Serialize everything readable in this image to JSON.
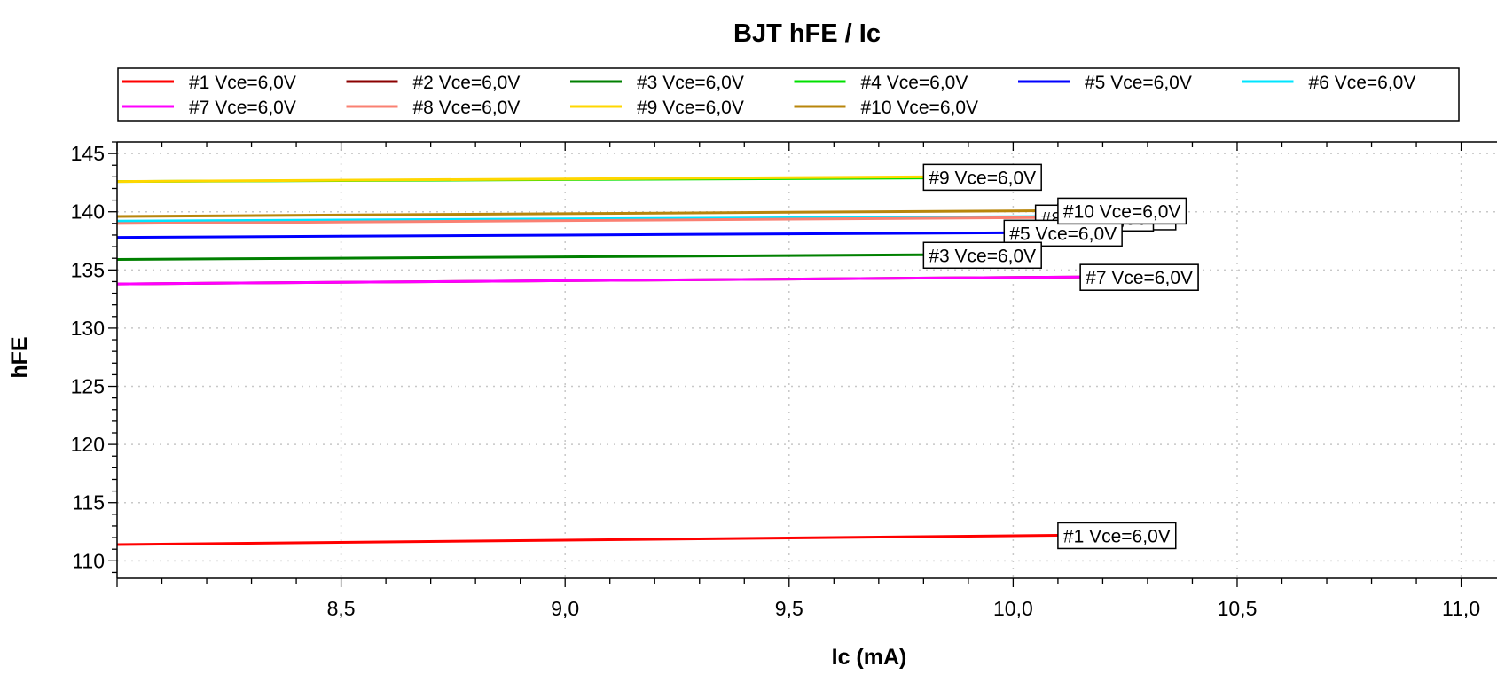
{
  "chart_data": {
    "type": "line",
    "title": "BJT hFE / Ic",
    "xlabel": "Ic (mA)",
    "ylabel": "hFE",
    "xlim": [
      8.0,
      11.08
    ],
    "ylim": [
      108.5,
      146
    ],
    "x_ticks": [
      8.5,
      9.0,
      9.5,
      10.0,
      10.5,
      11.0
    ],
    "x_tick_labels": [
      "8,5",
      "9,0",
      "9,5",
      "10,0",
      "10,5",
      "11,0"
    ],
    "y_ticks": [
      110,
      115,
      120,
      125,
      130,
      135,
      140,
      145
    ],
    "y_tick_labels": [
      "110",
      "115",
      "120",
      "125",
      "130",
      "135",
      "140",
      "145"
    ],
    "grid": true,
    "legend_position": "top",
    "series": [
      {
        "name": "#1 Vce=6,0V",
        "color": "#ff0000",
        "x": [
          8.0,
          10.1
        ],
        "y": [
          111.4,
          112.2
        ],
        "label_at_x": 10.1
      },
      {
        "name": "#2 Vce=6,0V",
        "color": "#8b0000",
        "x": [
          8.0,
          10.15
        ],
        "y": [
          133.8,
          134.4
        ],
        "label_at_x": 10.15
      },
      {
        "name": "#3 Vce=6,0V",
        "color": "#008000",
        "x": [
          8.0,
          9.8
        ],
        "y": [
          135.9,
          136.3
        ],
        "label_at_x": 9.8
      },
      {
        "name": "#4 Vce=6,0V",
        "color": "#00e000",
        "x": [
          8.0,
          9.8
        ],
        "y": [
          142.6,
          142.9
        ],
        "label_at_x": 9.8
      },
      {
        "name": "#5 Vce=6,0V",
        "color": "#0000ff",
        "x": [
          8.0,
          9.98
        ],
        "y": [
          137.8,
          138.2
        ],
        "label_at_x": 9.98
      },
      {
        "name": "#6 Vce=6,0V",
        "color": "#00e5ff",
        "x": [
          8.0,
          10.1
        ],
        "y": [
          139.2,
          139.6
        ],
        "label_at_x": 10.1
      },
      {
        "name": "#7 Vce=6,0V",
        "color": "#ff00ff",
        "x": [
          8.0,
          10.15
        ],
        "y": [
          133.8,
          134.4
        ],
        "label_at_x": 10.15
      },
      {
        "name": "#8 Vce=6,0V",
        "color": "#fa8072",
        "x": [
          8.0,
          10.05
        ],
        "y": [
          139.0,
          139.5
        ],
        "label_at_x": 10.05
      },
      {
        "name": "#9 Vce=6,0V",
        "color": "#ffd700",
        "x": [
          8.0,
          9.8
        ],
        "y": [
          142.6,
          143.0
        ],
        "label_at_x": 9.8
      },
      {
        "name": "#10 Vce=6,0V",
        "color": "#b8860b",
        "x": [
          8.0,
          10.1
        ],
        "y": [
          139.6,
          140.1
        ],
        "label_at_x": 10.1
      }
    ],
    "label_order": [
      "#9 Vce=6,0V",
      "#6 Vce=6,0V",
      "#8 Vce=6,0V",
      "#5 Vce=6,0V",
      "#10 Vce=6,0V",
      "#3 Vce=6,0V",
      "#2 Vce=6,0V",
      "#7 Vce=6,0V",
      "#1 Vce=6,0V"
    ]
  }
}
